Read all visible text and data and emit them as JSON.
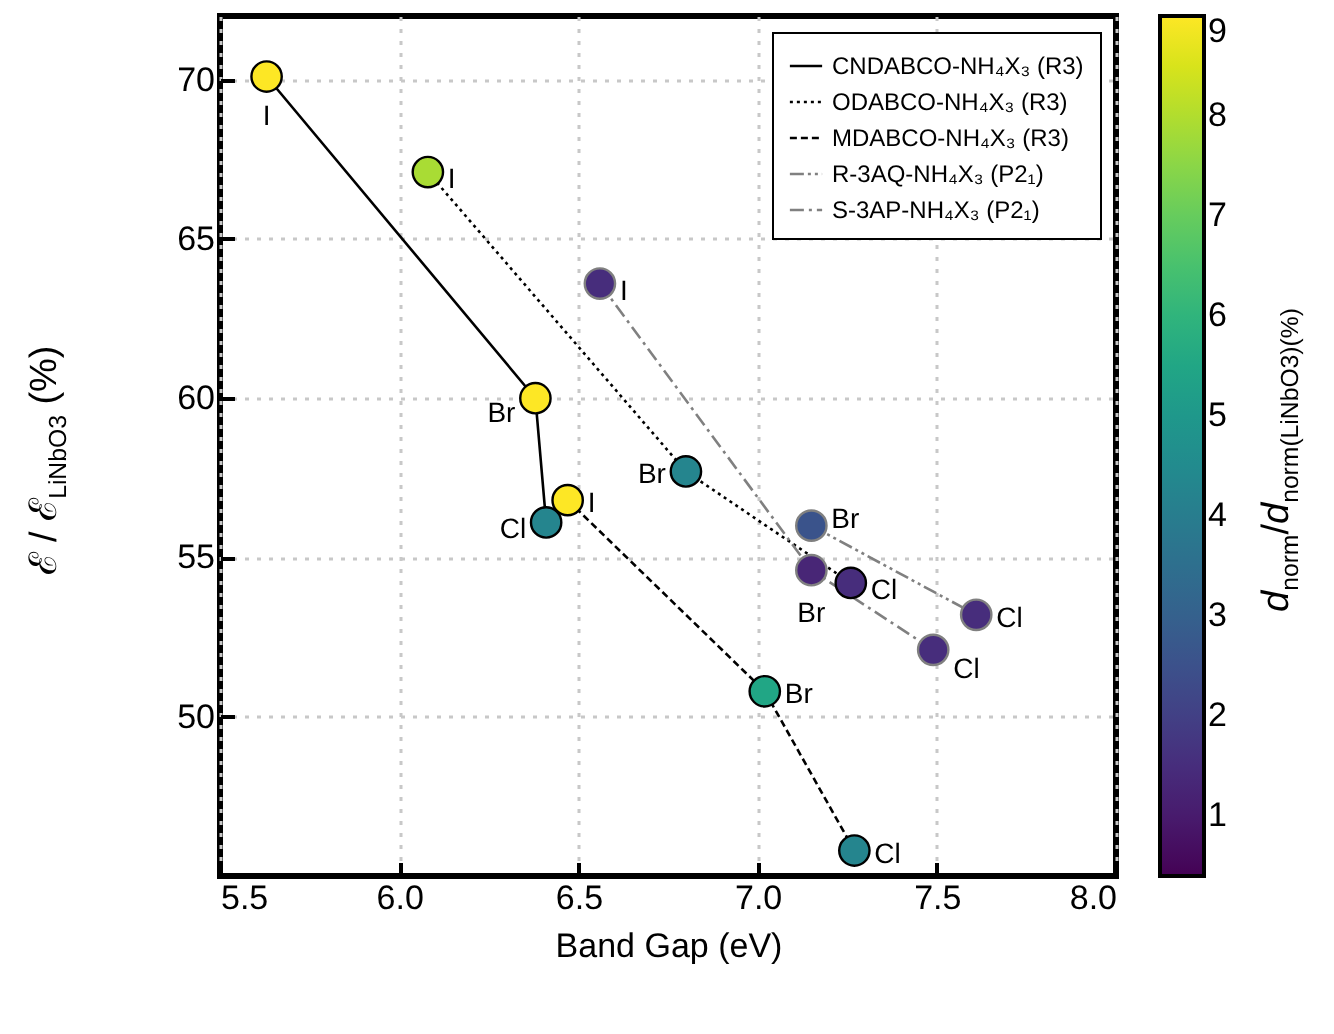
{
  "chart_data": {
    "type": "scatter",
    "xlabel": "Band Gap (eV)",
    "ylabel": "ℰ / ℰ$_{LiNbO3}$ (%)",
    "clabel": "d$_{norm}$/d$_{norm(LiNbO3)(%)}$",
    "xlim": [
      5.5,
      8.0
    ],
    "xticks": [
      5.5,
      {
        "value": 6,
        "label": "6.0"
      },
      6.5,
      {
        "value": 7,
        "label": "7.0"
      },
      7.5,
      {
        "value": 8,
        "label": "8.0"
      }
    ],
    "ylim": [
      45,
      72
    ],
    "yticks": [
      50,
      55,
      60,
      65,
      70
    ],
    "clim": [
      0.4,
      9
    ],
    "cticks": [
      1,
      2,
      3,
      4,
      5,
      6,
      7,
      8,
      9
    ],
    "grid": true,
    "legend": "top right",
    "marker": "circle",
    "series": [
      {
        "name": "CNDABCO-NH₄X₃ (R3)",
        "color": "#000000",
        "line_style": "solid",
        "x": [
          5.63,
          6.38,
          6.41
        ],
        "values": [
          70.1,
          60.0,
          56.1
        ],
        "cvalues": [
          9,
          9,
          4.3
        ]
      },
      {
        "name": "ODABCO-NH₄X₃ (R3)",
        "color": "#000000",
        "line_style": "dotted",
        "x": [
          6.08,
          6.8,
          7.26
        ],
        "values": [
          67.1,
          57.7,
          54.2
        ],
        "cvalues": [
          7.9,
          4.3,
          1.5
        ]
      },
      {
        "name": "MDABCO-NH₄X₃ (R3)",
        "color": "#000000",
        "line_style": "dashed",
        "x": [
          6.47,
          7.02,
          7.27
        ],
        "values": [
          56.8,
          50.8,
          45.8
        ],
        "cvalues": [
          9,
          5.5,
          4.3
        ]
      },
      {
        "name": "R-3AQ-NH₄X₃ (P2₁)",
        "color": "#808080",
        "line_style": "dashdotdot",
        "x": [
          7.15,
          7.61
        ],
        "values": [
          56.0,
          53.2
        ],
        "cvalues": [
          2.6,
          1.5
        ]
      },
      {
        "name": "S-3AP-NH₄X₃ (P2₁)",
        "color": "#808080",
        "line_style": "dashdot",
        "x": [
          6.56,
          7.15,
          7.49
        ],
        "values": [
          63.6,
          54.6,
          52.1
        ],
        "cvalues": [
          1.5,
          1.3,
          1.5
        ]
      }
    ],
    "annotations": [
      {
        "text": "I",
        "x": 5.63,
        "y": 70.1
      },
      {
        "text": "Br",
        "x": 6.38,
        "y": 60.0
      },
      {
        "text": "Cl",
        "x": 6.41,
        "y": 56.1
      },
      {
        "text": "I",
        "x": 6.08,
        "y": 67.1
      },
      {
        "text": "Br",
        "x": 6.8,
        "y": 57.7
      },
      {
        "text": "Cl",
        "x": 7.26,
        "y": 54.2
      },
      {
        "text": "I",
        "x": 6.47,
        "y": 56.8
      },
      {
        "text": "Br",
        "x": 7.02,
        "y": 50.8
      },
      {
        "text": "Cl",
        "x": 7.27,
        "y": 45.8
      },
      {
        "text": "Br",
        "x": 7.15,
        "y": 56.0
      },
      {
        "text": "Cl",
        "x": 7.61,
        "y": 53.2
      },
      {
        "text": "I",
        "x": 6.56,
        "y": 63.6
      },
      {
        "text": "Br",
        "x": 7.15,
        "y": 54.6
      },
      {
        "text": "Cl",
        "x": 7.49,
        "y": 52.1
      }
    ]
  }
}
